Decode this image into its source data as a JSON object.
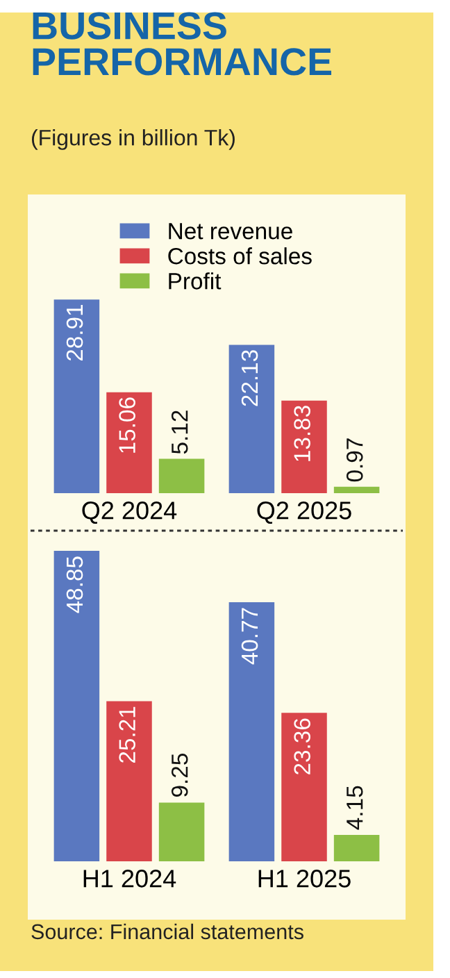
{
  "chart_data": [
    {
      "type": "bar",
      "title": "BUSINESS\nPERFORMANCE",
      "subtitle": "(Figures in billion Tk)",
      "categories": [
        "Q2 2024",
        "Q2 2025"
      ],
      "series": [
        {
          "name": "Net revenue",
          "color": "#5a78c0",
          "values": [
            28.91,
            22.13
          ]
        },
        {
          "name": "Costs of sales",
          "color": "#d9454a",
          "values": [
            15.06,
            13.83
          ]
        },
        {
          "name": "Profit",
          "color": "#8dbf45",
          "values": [
            5.12,
            0.97
          ]
        }
      ],
      "data_labels": true,
      "legend": "top",
      "grid": false
    },
    {
      "type": "bar",
      "categories": [
        "H1 2024",
        "H1 2025"
      ],
      "series": [
        {
          "color": "#5a78c0",
          "values": [
            48.85,
            40.77
          ]
        },
        {
          "color": "#d9454a",
          "values": [
            25.21,
            23.36
          ]
        },
        {
          "color": "#8dbf45",
          "values": [
            9.25,
            4.15
          ]
        }
      ],
      "data_labels": true,
      "grid": false,
      "annotations": [
        "Source: Financial statements"
      ]
    }
  ]
}
